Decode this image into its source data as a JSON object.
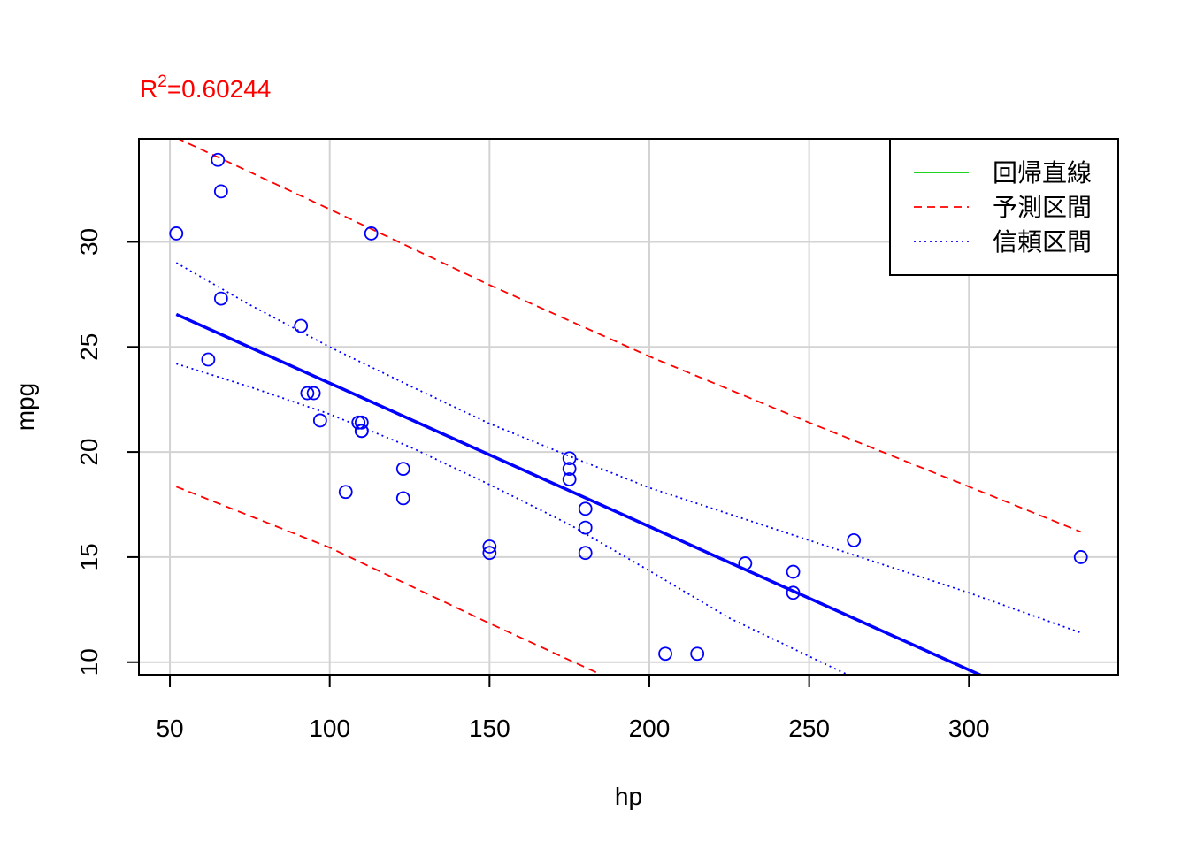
{
  "chart_data": {
    "type": "scatter",
    "xlabel": "hp",
    "ylabel": "mpg",
    "xlim": [
      40.3,
      346.7
    ],
    "ylim": [
      9.4,
      34.9
    ],
    "x_ticks": [
      50,
      100,
      150,
      200,
      250,
      300
    ],
    "y_ticks": [
      10,
      15,
      20,
      25,
      30
    ],
    "grid": true,
    "r2_annotation": {
      "prefix": "R",
      "superscript": "2",
      "value_text": "=0.60244",
      "color": "#ff0000"
    },
    "points": [
      {
        "x": 110,
        "y": 21.0
      },
      {
        "x": 110,
        "y": 21.0
      },
      {
        "x": 93,
        "y": 22.8
      },
      {
        "x": 110,
        "y": 21.4
      },
      {
        "x": 175,
        "y": 18.7
      },
      {
        "x": 105,
        "y": 18.1
      },
      {
        "x": 245,
        "y": 14.3
      },
      {
        "x": 62,
        "y": 24.4
      },
      {
        "x": 95,
        "y": 22.8
      },
      {
        "x": 123,
        "y": 19.2
      },
      {
        "x": 123,
        "y": 17.8
      },
      {
        "x": 180,
        "y": 16.4
      },
      {
        "x": 180,
        "y": 17.3
      },
      {
        "x": 180,
        "y": 15.2
      },
      {
        "x": 205,
        "y": 10.4
      },
      {
        "x": 215,
        "y": 10.4
      },
      {
        "x": 230,
        "y": 14.7
      },
      {
        "x": 66,
        "y": 32.4
      },
      {
        "x": 52,
        "y": 30.4
      },
      {
        "x": 65,
        "y": 33.9
      },
      {
        "x": 97,
        "y": 21.5
      },
      {
        "x": 150,
        "y": 15.5
      },
      {
        "x": 150,
        "y": 15.2
      },
      {
        "x": 245,
        "y": 13.3
      },
      {
        "x": 175,
        "y": 19.2
      },
      {
        "x": 66,
        "y": 27.3
      },
      {
        "x": 91,
        "y": 26.0
      },
      {
        "x": 113,
        "y": 30.4
      },
      {
        "x": 264,
        "y": 15.8
      },
      {
        "x": 175,
        "y": 19.7
      },
      {
        "x": 335,
        "y": 15.0
      },
      {
        "x": 109,
        "y": 21.4
      }
    ],
    "point_color": "#0000ff",
    "regression": {
      "intercept": 30.0989,
      "slope": -0.06823,
      "x_range": [
        52,
        335
      ],
      "color": "#0000ff"
    },
    "prediction_interval": {
      "color": "#ff0000",
      "upper": [
        [
          52,
          34.95
        ],
        [
          100,
          31.55
        ],
        [
          150,
          27.95
        ],
        [
          200,
          24.55
        ],
        [
          250,
          21.4
        ],
        [
          300,
          18.35
        ],
        [
          335,
          16.2
        ]
      ],
      "lower": [
        [
          52,
          18.35
        ],
        [
          100,
          15.45
        ],
        [
          150,
          11.85
        ],
        [
          185,
          9.4
        ]
      ]
    },
    "confidence_interval": {
      "color": "#0000ff",
      "upper": [
        [
          52,
          29.0
        ],
        [
          75,
          27.0
        ],
        [
          100,
          25.0
        ],
        [
          125,
          23.15
        ],
        [
          150,
          21.35
        ],
        [
          175,
          19.8
        ],
        [
          200,
          18.3
        ],
        [
          250,
          15.8
        ],
        [
          300,
          13.3
        ],
        [
          335,
          11.4
        ]
      ],
      "lower": [
        [
          52,
          24.2
        ],
        [
          75,
          23.1
        ],
        [
          100,
          21.8
        ],
        [
          125,
          20.25
        ],
        [
          150,
          18.45
        ],
        [
          175,
          16.55
        ],
        [
          200,
          14.35
        ],
        [
          225,
          12.1
        ],
        [
          262,
          9.4
        ]
      ]
    },
    "legend": {
      "placement": "top-right",
      "entries": [
        {
          "label": "回帰直線",
          "color": "#00cd00",
          "style": "solid"
        },
        {
          "label": "予測区間",
          "color": "#ff0000",
          "style": "dashed"
        },
        {
          "label": "信頼区間",
          "color": "#0000ff",
          "style": "dotted"
        }
      ]
    }
  }
}
